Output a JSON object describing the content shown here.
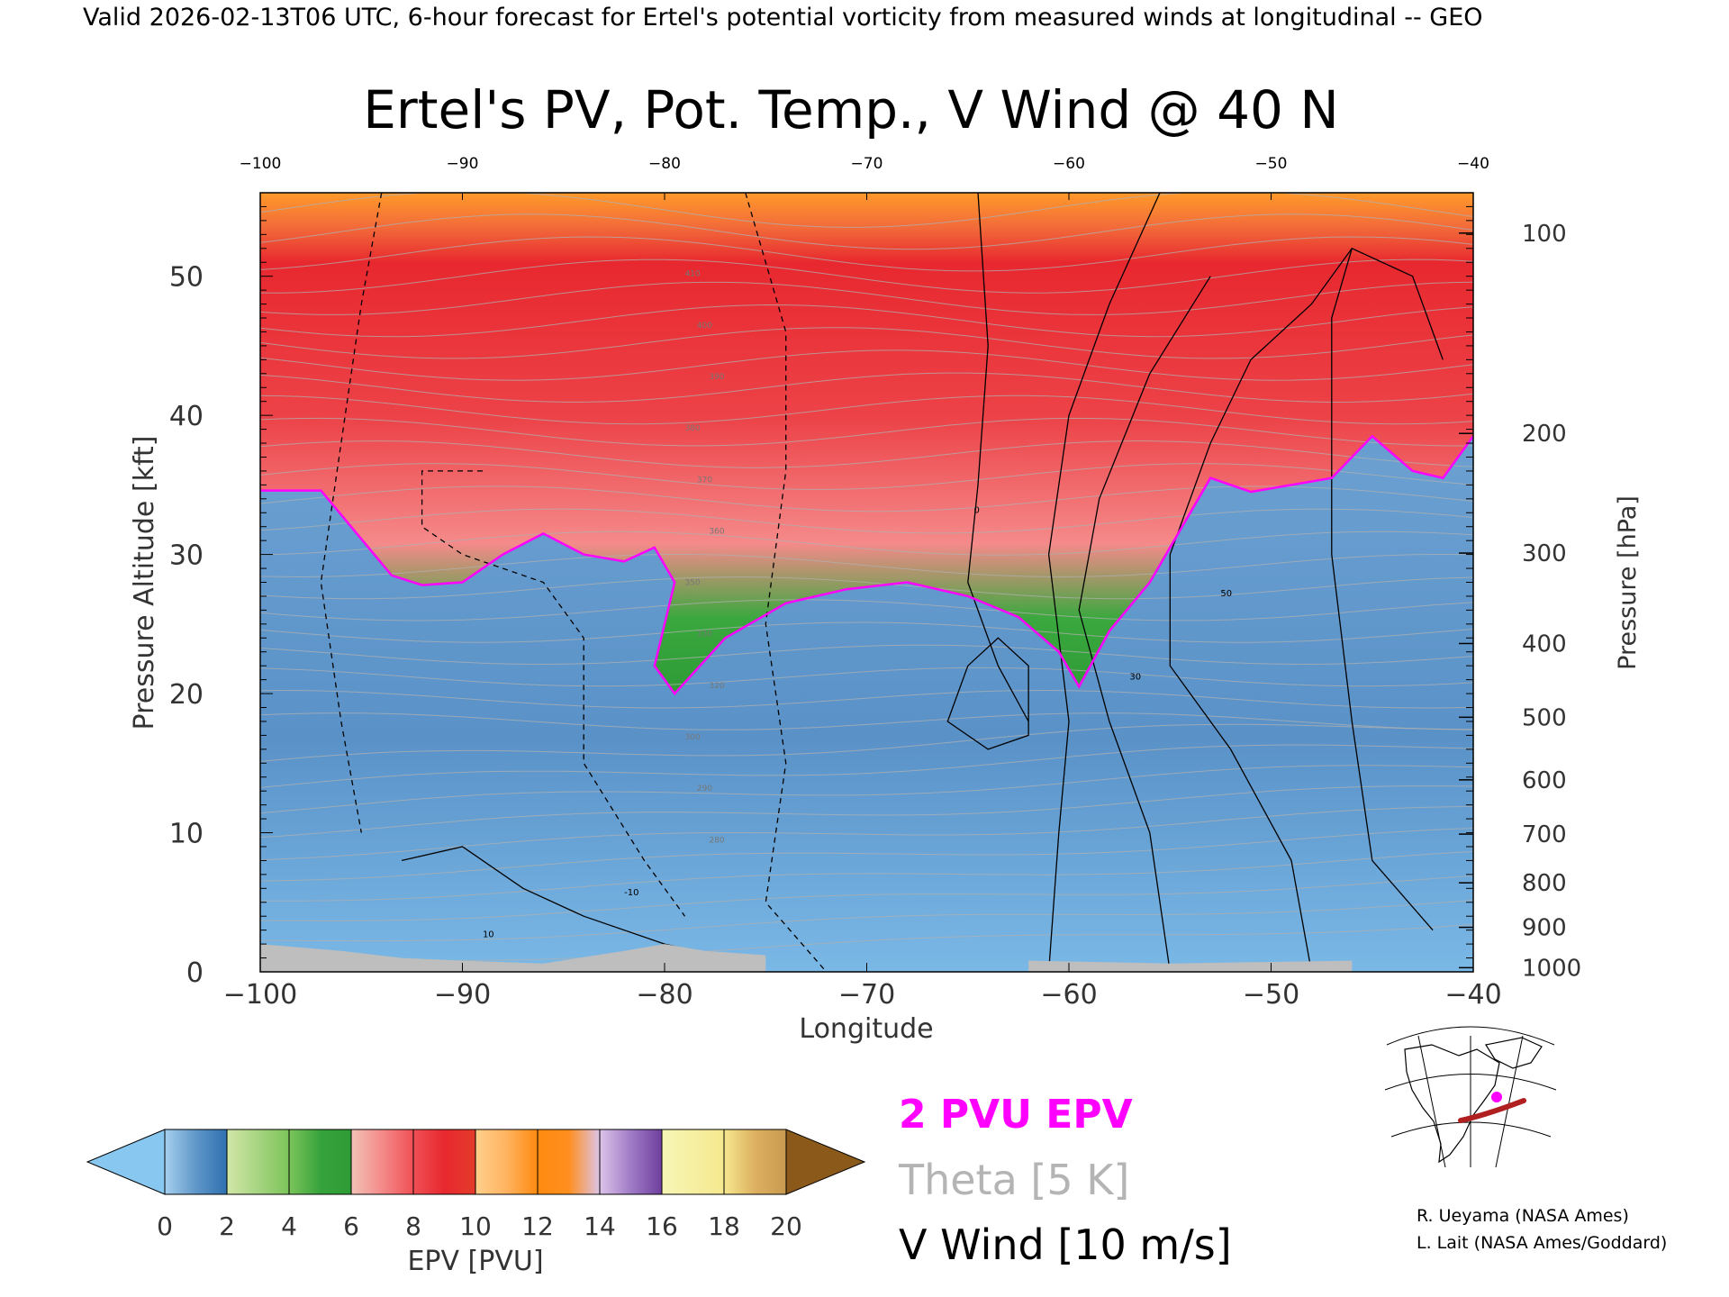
{
  "header": {
    "valid_line": "Valid 2026-02-13T06 UTC, 6-hour forecast for Ertel's potential vorticity from measured winds at longitudinal -- GEO"
  },
  "chart_data": {
    "type": "heatmap",
    "title": "Ertel's PV, Pot. Temp., V Wind @ 40 N",
    "xlabel": "Longitude",
    "ylabel_left": "Pressure Altitude [kft]",
    "ylabel_right": "Pressure [hPa]",
    "xlim": [
      -100,
      -40
    ],
    "ylim_kft": [
      0,
      56
    ],
    "x_ticks": [
      -100,
      -90,
      -80,
      -70,
      -60,
      -50,
      -40
    ],
    "x_tick_labels": [
      "−100",
      "−90",
      "−80",
      "−70",
      "−60",
      "−50",
      "−40"
    ],
    "top_ticks": [
      -100,
      -90,
      -80,
      -70,
      -60,
      -50,
      -40
    ],
    "top_tick_labels": [
      "−100",
      "−90",
      "−80",
      "−70",
      "−60",
      "−50",
      "−40"
    ],
    "y_ticks": [
      0,
      10,
      20,
      30,
      40,
      50
    ],
    "pressure_ticks": [
      {
        "hPa": 100,
        "kft": 53.1,
        "label": "100"
      },
      {
        "hPa": 200,
        "kft": 38.7,
        "label": "200"
      },
      {
        "hPa": 300,
        "kft": 30.1,
        "label": "300"
      },
      {
        "hPa": 400,
        "kft": 23.6,
        "label": "400"
      },
      {
        "hPa": 500,
        "kft": 18.3,
        "label": "500"
      },
      {
        "hPa": 600,
        "kft": 13.8,
        "label": "600"
      },
      {
        "hPa": 700,
        "kft": 9.9,
        "label": "700"
      },
      {
        "hPa": 800,
        "kft": 6.4,
        "label": "800"
      },
      {
        "hPa": 900,
        "kft": 3.2,
        "label": "900"
      },
      {
        "hPa": 1000,
        "kft": 0.3,
        "label": "1000"
      }
    ],
    "tropopause_2pvu_kft": [
      {
        "lon": -100,
        "kft": 34.6
      },
      {
        "lon": -97,
        "kft": 34.6
      },
      {
        "lon": -93.5,
        "kft": 28.5
      },
      {
        "lon": -92,
        "kft": 27.8
      },
      {
        "lon": -90,
        "kft": 28.0
      },
      {
        "lon": -88,
        "kft": 30.0
      },
      {
        "lon": -86,
        "kft": 31.5
      },
      {
        "lon": -84,
        "kft": 30.0
      },
      {
        "lon": -82,
        "kft": 29.5
      },
      {
        "lon": -80.5,
        "kft": 30.5
      },
      {
        "lon": -79.5,
        "kft": 28.0
      },
      {
        "lon": -80.5,
        "kft": 22.0
      },
      {
        "lon": -79.5,
        "kft": 20.0
      },
      {
        "lon": -77,
        "kft": 24.0
      },
      {
        "lon": -74,
        "kft": 26.5
      },
      {
        "lon": -71,
        "kft": 27.5
      },
      {
        "lon": -68,
        "kft": 28.0
      },
      {
        "lon": -65,
        "kft": 27.0
      },
      {
        "lon": -62.5,
        "kft": 25.5
      },
      {
        "lon": -60.5,
        "kft": 23.0
      },
      {
        "lon": -59.5,
        "kft": 20.5
      },
      {
        "lon": -58,
        "kft": 24.5
      },
      {
        "lon": -56,
        "kft": 28.0
      },
      {
        "lon": -53,
        "kft": 35.5
      },
      {
        "lon": -51,
        "kft": 34.5
      },
      {
        "lon": -47,
        "kft": 35.5
      },
      {
        "lon": -45,
        "kft": 38.5
      },
      {
        "lon": -43,
        "kft": 36.0
      },
      {
        "lon": -41.5,
        "kft": 35.5
      },
      {
        "lon": -40,
        "kft": 38.5
      }
    ],
    "theta_contour_labels": [
      "410",
      "400",
      "390",
      "380",
      "370",
      "360",
      "350",
      "330",
      "320",
      "300",
      "290",
      "280"
    ],
    "vwind_contour_labels": [
      "0",
      "10",
      "-10",
      "30",
      "50"
    ],
    "colorbar": {
      "label": "EPV [PVU]",
      "ticks": [
        0,
        2,
        4,
        6,
        8,
        10,
        12,
        14,
        16,
        18,
        20
      ],
      "stops": [
        {
          "v": 0,
          "c": "#a6cfee"
        },
        {
          "v": 1,
          "c": "#5f97c8"
        },
        {
          "v": 2,
          "c": "#2f70b0"
        },
        {
          "v": 2,
          "c": "#d2e6a8"
        },
        {
          "v": 4,
          "c": "#7cc45a"
        },
        {
          "v": 5,
          "c": "#37a33c"
        },
        {
          "v": 6,
          "c": "#2e9b35"
        },
        {
          "v": 6,
          "c": "#f2c2b6"
        },
        {
          "v": 7,
          "c": "#f48a8a"
        },
        {
          "v": 8,
          "c": "#ef5055"
        },
        {
          "v": 9,
          "c": "#e8282f"
        },
        {
          "v": 10,
          "c": "#e43c2b"
        },
        {
          "v": 10,
          "c": "#ffd08c"
        },
        {
          "v": 11,
          "c": "#ffb360"
        },
        {
          "v": 12,
          "c": "#ff8a10"
        },
        {
          "v": 13,
          "c": "#ff8f1f"
        },
        {
          "v": 14,
          "c": "#dcc4e8"
        },
        {
          "v": 15,
          "c": "#a07bc6"
        },
        {
          "v": 16,
          "c": "#6e3f9e"
        },
        {
          "v": 16,
          "c": "#f6f6b6"
        },
        {
          "v": 18,
          "c": "#f6e88e"
        },
        {
          "v": 19,
          "c": "#dcb060"
        },
        {
          "v": 20,
          "c": "#c89a50"
        }
      ],
      "under_color": "#87c7f0",
      "over_color": "#8b5a1a"
    }
  },
  "legend": {
    "epv_label": "2 PVU EPV",
    "theta_label": "Theta [5 K]",
    "vwind_label": "V Wind [10 m/s]",
    "epv_color": "#ff00ff",
    "theta_color": "#b4b4b4",
    "vwind_color": "#000000"
  },
  "credits": {
    "line1": "R. Ueyama (NASA Ames)",
    "line2": "L. Lait (NASA Ames/Goddard)"
  },
  "colors": {
    "tropopause": "#ff00ff",
    "theta": "#b0b0b0",
    "vwind": "#000000",
    "ground": "#bebebe",
    "map_route": "#b02020",
    "map_marker": "#ff00ff"
  }
}
